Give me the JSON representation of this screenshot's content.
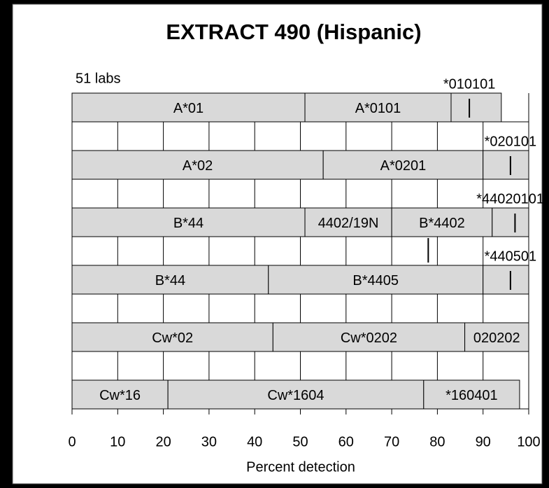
{
  "chart_data": {
    "type": "stacked-bar",
    "orientation": "horizontal",
    "title": "EXTRACT 490 (Hispanic)",
    "subtitle": "51 labs",
    "xlabel": "Percent detection",
    "xlim": [
      0,
      100
    ],
    "xticks": [
      0,
      10,
      20,
      30,
      40,
      50,
      60,
      70,
      80,
      90,
      100
    ],
    "grid": true,
    "color": "#d9d9d9",
    "rows": [
      {
        "segments": [
          {
            "label": "A*01",
            "value": 51
          },
          {
            "label": "A*0101",
            "value": 32
          },
          {
            "label": "*010101",
            "value": 11
          }
        ],
        "markers": [
          87
        ]
      },
      {
        "segments": [
          {
            "label": "A*02",
            "value": 55
          },
          {
            "label": "A*0201",
            "value": 35
          },
          {
            "label": "*020101",
            "value": 10
          }
        ],
        "markers": [
          96
        ]
      },
      {
        "segments": [
          {
            "label": "B*44",
            "value": 51
          },
          {
            "label": "4402/19N",
            "value": 19
          },
          {
            "label": "B*4402",
            "value": 22
          },
          {
            "label": "*44020101",
            "value": 8
          }
        ],
        "markers": [
          97
        ],
        "gap_markers": [
          78
        ]
      },
      {
        "segments": [
          {
            "label": "B*44",
            "value": 43
          },
          {
            "label": "B*4405",
            "value": 47
          },
          {
            "label": "*440501",
            "value": 10
          }
        ],
        "markers": [
          96
        ]
      },
      {
        "segments": [
          {
            "label": "Cw*02",
            "value": 44
          },
          {
            "label": "Cw*0202",
            "value": 42
          },
          {
            "label": "020202",
            "value": 14
          }
        ]
      },
      {
        "segments": [
          {
            "label": "Cw*16",
            "value": 21
          },
          {
            "label": "Cw*1604",
            "value": 56
          },
          {
            "label": "*160401",
            "value": 21
          }
        ]
      }
    ]
  }
}
